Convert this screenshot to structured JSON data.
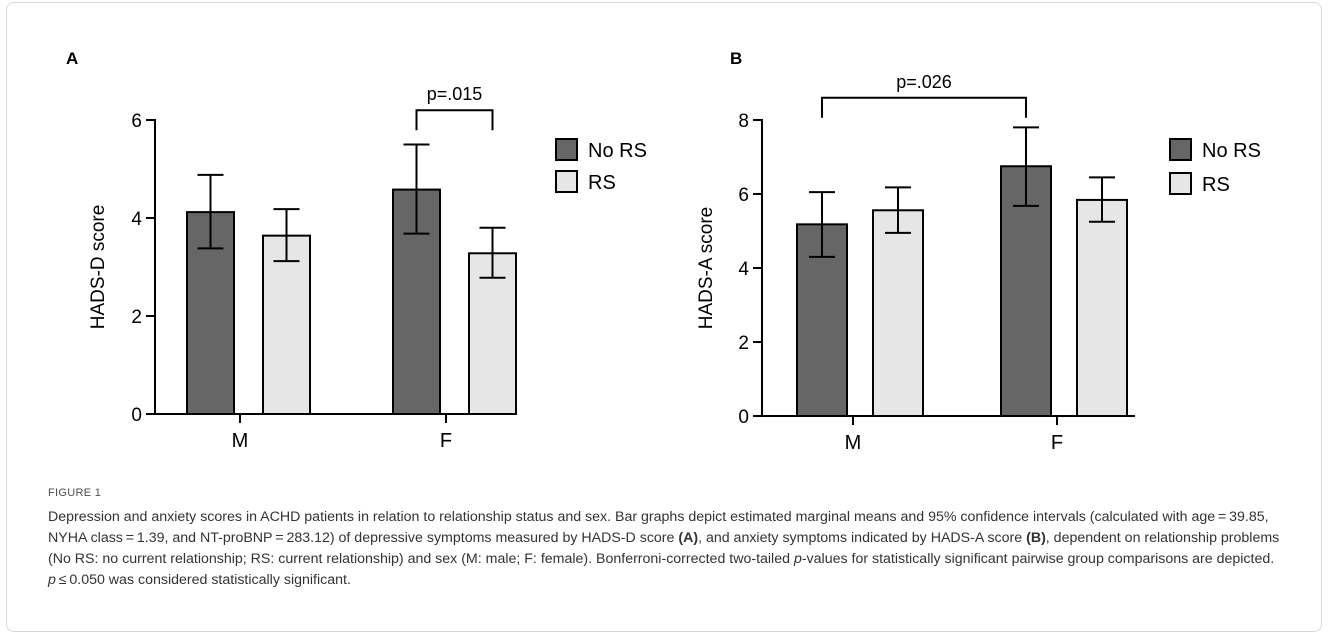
{
  "colors": {
    "no_rs": "#666666",
    "rs": "#e6e6e6",
    "stroke": "#000000"
  },
  "chart_data": [
    {
      "type": "bar",
      "panel_label": "A",
      "ylabel": "HADS-D score",
      "categories": [
        "M",
        "F"
      ],
      "ylim": [
        0,
        6
      ],
      "yticks": [
        0,
        2,
        4,
        6
      ],
      "legend": {
        "placement": "right",
        "entries": [
          "No RS",
          "RS"
        ]
      },
      "series": [
        {
          "name": "No RS",
          "values": [
            4.12,
            4.58
          ],
          "ci_low": [
            3.38,
            3.68
          ],
          "ci_high": [
            4.88,
            5.5
          ]
        },
        {
          "name": "RS",
          "values": [
            3.64,
            3.28
          ],
          "ci_low": [
            3.12,
            2.78
          ],
          "ci_high": [
            4.18,
            3.8
          ]
        }
      ],
      "annotations": [
        {
          "text": "p=.015",
          "from": {
            "category": 1,
            "series": 0
          },
          "to": {
            "category": 1,
            "series": 1
          },
          "y": 6.2
        }
      ]
    },
    {
      "type": "bar",
      "panel_label": "B",
      "ylabel": "HADS-A score",
      "categories": [
        "M",
        "F"
      ],
      "ylim": [
        0,
        8
      ],
      "yticks": [
        0,
        2,
        4,
        6,
        8
      ],
      "legend": {
        "placement": "right",
        "entries": [
          "No RS",
          "RS"
        ]
      },
      "series": [
        {
          "name": "No RS",
          "values": [
            5.18,
            6.75
          ],
          "ci_low": [
            4.3,
            5.68
          ],
          "ci_high": [
            6.05,
            7.8
          ]
        },
        {
          "name": "RS",
          "values": [
            5.56,
            5.84
          ],
          "ci_low": [
            4.95,
            5.25
          ],
          "ci_high": [
            6.18,
            6.45
          ]
        }
      ],
      "annotations": [
        {
          "text": "p=.026",
          "from": {
            "category": 0,
            "series": 0
          },
          "to": {
            "category": 1,
            "series": 0
          },
          "y": 8.6
        }
      ]
    }
  ],
  "figure_label": "FIGURE 1",
  "caption": {
    "p1": "Depression and anxiety scores in ACHD patients in relation to relationship status and sex. Bar graphs depict estimated marginal means and 95% confidence intervals (calculated with age = 39.85, NYHA class = 1.39, and NT-proBNP = 283.12) of depressive symptoms measured by HADS-D score ",
    "ref_a": "(A)",
    "p2": ", and anxiety symptoms indicated by HADS-A score ",
    "ref_b": "(B)",
    "p3": ", dependent on relationship problems (No RS: no current relationship; RS: current relationship) and sex (M: male; F: female). Bonferroni-corrected two-tailed ",
    "p_italic": "p",
    "p4": "-values for statistically significant pairwise group comparisons are depicted. ",
    "p_italic2": "p",
    "p5": " ≤ 0.050 was considered statistically significant."
  }
}
